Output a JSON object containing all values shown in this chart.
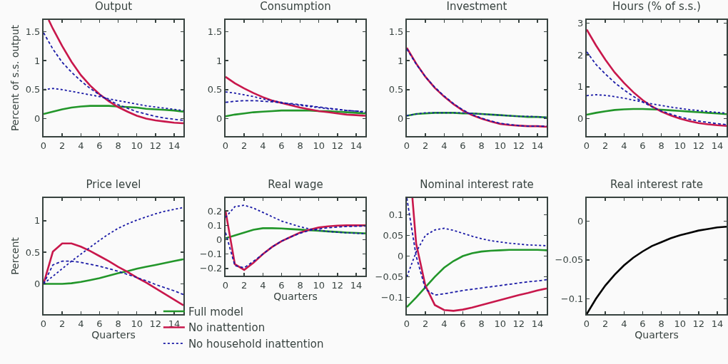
{
  "chart_data": [
    {
      "type": "line",
      "title": "Output",
      "ylabel": "Percent of s.s. output",
      "x": [
        0,
        1,
        2,
        3,
        4,
        5,
        6,
        7,
        8,
        9,
        10,
        11,
        12,
        13,
        14,
        15
      ],
      "xlim": [
        0,
        15
      ],
      "xticks": [
        0,
        2,
        4,
        6,
        8,
        10,
        12,
        14
      ],
      "ylim": [
        -0.3,
        1.7
      ],
      "yticks": [
        0,
        0.5,
        1,
        1.5
      ],
      "grid": false,
      "series": [
        {
          "color": "#22962a",
          "line_style": "solid",
          "values": [
            0.08,
            0.12,
            0.16,
            0.19,
            0.21,
            0.22,
            0.22,
            0.22,
            0.21,
            0.2,
            0.19,
            0.17,
            0.16,
            0.15,
            0.14,
            0.12
          ]
        },
        {
          "color": "#c8174b",
          "line_style": "solid",
          "x": [
            0.55,
            1,
            2,
            3,
            4,
            5,
            6,
            7,
            8,
            9,
            10,
            11,
            12,
            13,
            14,
            15
          ],
          "values": [
            1.7,
            1.55,
            1.25,
            0.98,
            0.75,
            0.57,
            0.42,
            0.3,
            0.2,
            0.12,
            0.05,
            0,
            -0.03,
            -0.05,
            -0.07,
            -0.08
          ]
        },
        {
          "color": "#1a1aa6",
          "line_style": "dashed",
          "values": [
            1.48,
            1.2,
            0.97,
            0.8,
            0.65,
            0.52,
            0.41,
            0.32,
            0.24,
            0.18,
            0.12,
            0.08,
            0.04,
            0.01,
            -0.01,
            -0.03
          ]
        },
        {
          "color": "#1a1aa6",
          "line_style": "dotted",
          "values": [
            0.5,
            0.52,
            0.5,
            0.47,
            0.44,
            0.41,
            0.38,
            0.34,
            0.31,
            0.28,
            0.25,
            0.22,
            0.2,
            0.18,
            0.16,
            0.14
          ]
        }
      ]
    },
    {
      "type": "line",
      "title": "Consumption",
      "x": [
        0,
        1,
        2,
        3,
        4,
        5,
        6,
        7,
        8,
        9,
        10,
        11,
        12,
        13,
        14,
        15
      ],
      "xlim": [
        0,
        15
      ],
      "xticks": [
        0,
        2,
        4,
        6,
        8,
        10,
        12,
        14
      ],
      "ylim": [
        -0.3,
        1.7
      ],
      "yticks": [
        0,
        0.5,
        1,
        1.5
      ],
      "grid": false,
      "series": [
        {
          "color": "#22962a",
          "line_style": "solid",
          "values": [
            0.04,
            0.07,
            0.09,
            0.11,
            0.12,
            0.13,
            0.14,
            0.14,
            0.14,
            0.14,
            0.13,
            0.13,
            0.12,
            0.11,
            0.1,
            0.09
          ]
        },
        {
          "color": "#c8174b",
          "line_style": "solid",
          "values": [
            0.72,
            0.61,
            0.52,
            0.44,
            0.37,
            0.31,
            0.27,
            0.23,
            0.19,
            0.16,
            0.13,
            0.11,
            0.09,
            0.07,
            0.06,
            0.05
          ]
        },
        {
          "color": "#1a1aa6",
          "line_style": "dashed",
          "values": [
            0.28,
            0.3,
            0.31,
            0.31,
            0.3,
            0.29,
            0.27,
            0.26,
            0.24,
            0.22,
            0.2,
            0.18,
            0.16,
            0.14,
            0.13,
            0.11
          ]
        },
        {
          "color": "#1a1aa6",
          "line_style": "dotted",
          "values": [
            0.46,
            0.44,
            0.41,
            0.38,
            0.34,
            0.31,
            0.28,
            0.25,
            0.23,
            0.21,
            0.19,
            0.17,
            0.16,
            0.14,
            0.13,
            0.12
          ]
        }
      ]
    },
    {
      "type": "line",
      "title": "Investment",
      "x": [
        0,
        1,
        2,
        3,
        4,
        5,
        6,
        7,
        8,
        9,
        10,
        11,
        12,
        13,
        14,
        15
      ],
      "xlim": [
        0,
        15
      ],
      "xticks": [
        0,
        2,
        4,
        6,
        8,
        10,
        12,
        14
      ],
      "ylim": [
        -0.3,
        1.7
      ],
      "yticks": [
        0,
        0.5,
        1,
        1.5
      ],
      "grid": false,
      "series": [
        {
          "color": "#22962a",
          "line_style": "solid",
          "values": [
            0.05,
            0.08,
            0.09,
            0.1,
            0.1,
            0.1,
            0.09,
            0.09,
            0.08,
            0.07,
            0.06,
            0.05,
            0.04,
            0.03,
            0.03,
            0.02
          ]
        },
        {
          "color": "#c8174b",
          "line_style": "solid",
          "values": [
            1.22,
            0.95,
            0.72,
            0.53,
            0.38,
            0.25,
            0.14,
            0.06,
            0,
            -0.05,
            -0.09,
            -0.11,
            -0.12,
            -0.13,
            -0.13,
            -0.14
          ]
        },
        {
          "color": "#1a1aa6",
          "line_style": "dashed",
          "values": [
            1.2,
            0.94,
            0.72,
            0.54,
            0.39,
            0.26,
            0.15,
            0.07,
            0.01,
            -0.04,
            -0.08,
            -0.1,
            -0.12,
            -0.13,
            -0.13,
            -0.13
          ]
        },
        {
          "color": "#1a1aa6",
          "line_style": "dotted",
          "values": [
            0.05,
            0.08,
            0.1,
            0.1,
            0.1,
            0.1,
            0.1,
            0.09,
            0.08,
            0.07,
            0.06,
            0.05,
            0.04,
            0.04,
            0.03,
            0.02
          ]
        }
      ]
    },
    {
      "type": "line",
      "title": "Hours (% of s.s.)",
      "x": [
        0,
        1,
        2,
        3,
        4,
        5,
        6,
        7,
        8,
        9,
        10,
        11,
        12,
        13,
        14,
        15
      ],
      "xlim": [
        0,
        15
      ],
      "xticks": [
        0,
        2,
        4,
        6,
        8,
        10,
        12,
        14
      ],
      "ylim": [
        -0.55,
        3.1
      ],
      "yticks": [
        0,
        1,
        2,
        3
      ],
      "grid": false,
      "series": [
        {
          "color": "#22962a",
          "line_style": "solid",
          "values": [
            0.12,
            0.18,
            0.23,
            0.27,
            0.29,
            0.3,
            0.3,
            0.29,
            0.28,
            0.26,
            0.24,
            0.22,
            0.2,
            0.18,
            0.16,
            0.14
          ]
        },
        {
          "color": "#c8174b",
          "line_style": "solid",
          "values": [
            2.8,
            2.3,
            1.85,
            1.45,
            1.12,
            0.83,
            0.58,
            0.38,
            0.22,
            0.1,
            0,
            -0.08,
            -0.14,
            -0.18,
            -0.21,
            -0.23
          ]
        },
        {
          "color": "#1a1aa6",
          "line_style": "dashed",
          "values": [
            2.1,
            1.7,
            1.4,
            1.13,
            0.9,
            0.7,
            0.52,
            0.37,
            0.24,
            0.14,
            0.05,
            -0.02,
            -0.08,
            -0.12,
            -0.16,
            -0.19
          ]
        },
        {
          "color": "#1a1aa6",
          "line_style": "dotted",
          "values": [
            0.72,
            0.75,
            0.73,
            0.69,
            0.64,
            0.58,
            0.52,
            0.46,
            0.41,
            0.36,
            0.32,
            0.28,
            0.25,
            0.22,
            0.19,
            0.17
          ]
        }
      ]
    },
    {
      "type": "line",
      "title": "Price level",
      "ylabel": "Percent",
      "xlabel": "Quarters",
      "x": [
        0,
        1,
        2,
        3,
        4,
        5,
        6,
        7,
        8,
        9,
        10,
        11,
        12,
        13,
        14,
        15
      ],
      "xlim": [
        0,
        15
      ],
      "xticks": [
        0,
        2,
        4,
        6,
        8,
        10,
        12,
        14
      ],
      "ylim": [
        -0.48,
        1.36
      ],
      "yticks": [
        0,
        0.5,
        1
      ],
      "grid": false,
      "series": [
        {
          "color": "#22962a",
          "line_style": "solid",
          "values": [
            0,
            0,
            0,
            0.01,
            0.03,
            0.06,
            0.09,
            0.13,
            0.17,
            0.2,
            0.24,
            0.27,
            0.3,
            0.33,
            0.36,
            0.39
          ]
        },
        {
          "color": "#c8174b",
          "line_style": "solid",
          "values": [
            0,
            0.51,
            0.64,
            0.64,
            0.59,
            0.52,
            0.44,
            0.36,
            0.27,
            0.19,
            0.1,
            0.02,
            -0.07,
            -0.16,
            -0.25,
            -0.34
          ]
        },
        {
          "color": "#1a1aa6",
          "line_style": "dashed",
          "values": [
            0,
            0.3,
            0.36,
            0.36,
            0.34,
            0.31,
            0.28,
            0.24,
            0.2,
            0.15,
            0.1,
            0.05,
            -0.01,
            -0.06,
            -0.11,
            -0.17
          ]
        },
        {
          "color": "#1a1aa6",
          "line_style": "dotted",
          "values": [
            0,
            0.12,
            0.24,
            0.36,
            0.47,
            0.58,
            0.69,
            0.79,
            0.88,
            0.95,
            1.01,
            1.06,
            1.11,
            1.15,
            1.18,
            1.21
          ]
        }
      ]
    },
    {
      "type": "line",
      "title": "Real wage",
      "xlabel": "Quarters",
      "x": [
        0,
        1,
        2,
        3,
        4,
        5,
        6,
        7,
        8,
        9,
        10,
        11,
        12,
        13,
        14,
        15
      ],
      "xlim": [
        0,
        15
      ],
      "xticks": [
        0,
        2,
        4,
        6,
        8,
        10,
        12,
        14
      ],
      "ylim": [
        -0.25,
        0.29
      ],
      "yticks": [
        -0.2,
        -0.1,
        0,
        0.1,
        0.2
      ],
      "grid": false,
      "legend": "bottom",
      "series": [
        {
          "name": "Full model",
          "color": "#22962a",
          "line_style": "solid",
          "values": [
            0.01,
            0.03,
            0.05,
            0.07,
            0.08,
            0.08,
            0.078,
            0.074,
            0.07,
            0.066,
            0.062,
            0.058,
            0.054,
            0.05,
            0.047,
            0.044
          ]
        },
        {
          "name": "No inattention",
          "color": "#c8174b",
          "line_style": "solid",
          "values": [
            0.2,
            -0.17,
            -0.21,
            -0.16,
            -0.1,
            -0.05,
            -0.01,
            0.02,
            0.05,
            0.07,
            0.085,
            0.093,
            0.098,
            0.1,
            0.1,
            0.1
          ]
        },
        {
          "color": "#1a1aa6",
          "line_style": "dashed",
          "values": [
            0.05,
            -0.18,
            -0.195,
            -0.15,
            -0.1,
            -0.05,
            -0.01,
            0.02,
            0.045,
            0.065,
            0.075,
            0.083,
            0.088,
            0.092,
            0.094,
            0.095
          ]
        },
        {
          "name": "No household inattention",
          "color": "#1a1aa6",
          "line_style": "dotted",
          "values": [
            0.155,
            0.23,
            0.24,
            0.22,
            0.19,
            0.16,
            0.13,
            0.11,
            0.09,
            0.075,
            0.065,
            0.058,
            0.052,
            0.048,
            0.045,
            0.042
          ]
        }
      ]
    },
    {
      "type": "line",
      "title": "Nominal interest rate",
      "x": [
        0,
        1,
        2,
        3,
        4,
        5,
        6,
        7,
        8,
        9,
        10,
        11,
        12,
        13,
        14,
        15
      ],
      "xlim": [
        0,
        15
      ],
      "xticks": [
        0,
        2,
        4,
        6,
        8,
        10,
        12,
        14
      ],
      "ylim": [
        -0.14,
        0.14
      ],
      "yticks": [
        -0.1,
        -0.05,
        0,
        0.05,
        0.1
      ],
      "grid": false,
      "series": [
        {
          "color": "#22962a",
          "line_style": "solid",
          "values": [
            -0.123,
            -0.1,
            -0.075,
            -0.05,
            -0.028,
            -0.012,
            0,
            0.007,
            0.011,
            0.013,
            0.014,
            0.015,
            0.015,
            0.015,
            0.015,
            0.014
          ]
        },
        {
          "color": "#c8174b",
          "line_style": "solid",
          "x": [
            0.6,
            1,
            2,
            3,
            4,
            5,
            6,
            7,
            8,
            9,
            10,
            11,
            12,
            13,
            14,
            15
          ],
          "values": [
            0.14,
            0.03,
            -0.072,
            -0.118,
            -0.13,
            -0.132,
            -0.129,
            -0.124,
            -0.118,
            -0.112,
            -0.106,
            -0.1,
            -0.094,
            -0.089,
            -0.083,
            -0.078
          ]
        },
        {
          "color": "#1a1aa6",
          "line_style": "dashed",
          "values": [
            0.14,
            0,
            -0.08,
            -0.094,
            -0.091,
            -0.087,
            -0.083,
            -0.08,
            -0.077,
            -0.074,
            -0.071,
            -0.068,
            -0.065,
            -0.062,
            -0.06,
            -0.057
          ]
        },
        {
          "color": "#1a1aa6",
          "line_style": "dotted",
          "values": [
            -0.05,
            0.01,
            0.05,
            0.063,
            0.067,
            0.062,
            0.055,
            0.048,
            0.042,
            0.037,
            0.034,
            0.031,
            0.029,
            0.027,
            0.026,
            0.025
          ]
        }
      ]
    },
    {
      "type": "line",
      "title": "Real interest rate",
      "xlabel": "Quarters",
      "x": [
        0,
        1,
        2,
        3,
        4,
        5,
        6,
        7,
        8,
        9,
        10,
        11,
        12,
        13,
        14,
        15
      ],
      "xlim": [
        0,
        15
      ],
      "xticks": [
        0,
        2,
        4,
        6,
        8,
        10,
        12,
        14
      ],
      "ylim": [
        -0.12,
        0.03
      ],
      "yticks": [
        -0.1,
        -0.05,
        0
      ],
      "grid": false,
      "series": [
        {
          "color": "#000000",
          "line_style": "solid",
          "values": [
            -0.12,
            -0.1,
            -0.083,
            -0.069,
            -0.057,
            -0.047,
            -0.039,
            -0.032,
            -0.027,
            -0.022,
            -0.018,
            -0.015,
            -0.012,
            -0.01,
            -0.008,
            -0.007
          ]
        }
      ]
    }
  ]
}
